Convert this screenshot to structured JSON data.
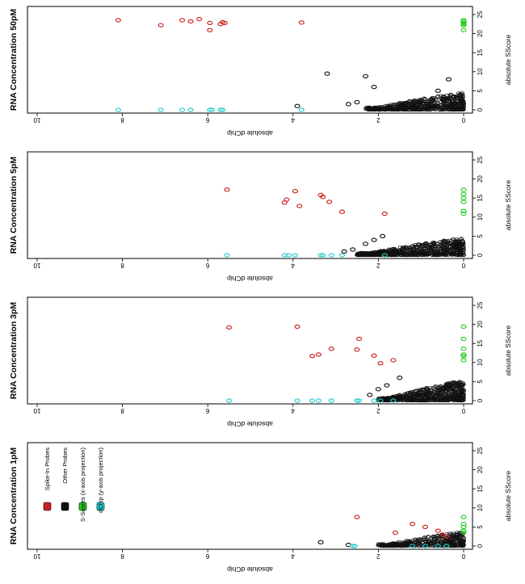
{
  "figure": {
    "x_axis_label": "absolute dChip",
    "y_axis_label": "absolute SScore",
    "x_ticks": [
      0,
      2,
      4,
      6,
      8,
      10
    ],
    "y_ticks": [
      0,
      5,
      10,
      15,
      20,
      25
    ],
    "xlim": [
      10,
      0
    ],
    "ylim": [
      0,
      25
    ],
    "orientation_note_rotated_text": "axis text rendered upside-down",
    "colors": {
      "spike_in": "#cc1f1f",
      "other": "#111111",
      "x_projection": "#22cc22",
      "y_projection": "#22cccc"
    }
  },
  "legend": {
    "items": [
      {
        "label": "Spike-In Probes",
        "color": "#cc1f1f"
      },
      {
        "label": "Other Probes",
        "color": "#111111"
      },
      {
        "label": "S-Scores (x-axis projection)",
        "color": "#22cc22"
      },
      {
        "label": "dChip (y-axis projection)",
        "color": "#22cccc"
      }
    ]
  },
  "chart_data": [
    {
      "type": "scatter",
      "title": "RNA Concentration 50pM",
      "xlabel": "absolute dChip",
      "ylabel": "absolute SScore",
      "xlim": [
        10,
        0
      ],
      "ylim": [
        0,
        25
      ],
      "series": [
        {
          "name": "Spike-In Probes",
          "x": [
            8.1,
            7.1,
            6.6,
            6.4,
            6.2,
            5.95,
            5.95,
            5.7,
            5.65,
            5.6,
            3.8
          ],
          "y": [
            23.5,
            22.2,
            23.5,
            23.2,
            23.8,
            22.8,
            20.9,
            22.5,
            23.0,
            22.8,
            22.9
          ]
        },
        {
          "name": "Other Probes",
          "x": [
            3.2,
            2.3,
            2.1,
            0.35,
            3.9,
            0.6,
            2.7,
            2.5
          ],
          "y": [
            9.5,
            8.8,
            6.0,
            8.0,
            1.0,
            5.0,
            1.5,
            2.0
          ]
        },
        {
          "name": "S-Scores (x-axis projection)",
          "x": [
            0,
            0,
            0,
            0,
            0,
            0
          ],
          "y": [
            23.5,
            23.2,
            22.8,
            22.5,
            22.2,
            20.9
          ]
        },
        {
          "name": "dChip (y-axis projection)",
          "x": [
            8.1,
            7.1,
            6.6,
            6.4,
            5.95,
            5.9,
            5.7,
            5.65,
            3.8
          ],
          "y": [
            0,
            0,
            0,
            0,
            0,
            0,
            0,
            0,
            0
          ]
        }
      ]
    },
    {
      "type": "scatter",
      "title": "RNA Concentration 5pM",
      "xlabel": "absolute dChip",
      "ylabel": "absolute SScore",
      "xlim": [
        10,
        0
      ],
      "ylim": [
        0,
        25
      ],
      "series": [
        {
          "name": "Spike-In Probes",
          "x": [
            5.55,
            4.2,
            4.15,
            3.95,
            3.85,
            3.35,
            3.3,
            3.15,
            2.85,
            1.85
          ],
          "y": [
            17.2,
            13.8,
            14.6,
            16.8,
            12.9,
            15.8,
            15.3,
            14.0,
            11.4,
            10.9
          ]
        },
        {
          "name": "Other Probes",
          "x": [
            1.9,
            2.1,
            2.3,
            2.6,
            2.8
          ],
          "y": [
            5.0,
            4.0,
            3.0,
            1.5,
            1.0
          ]
        },
        {
          "name": "S-Scores (x-axis projection)",
          "x": [
            0,
            0,
            0,
            0,
            0,
            0
          ],
          "y": [
            17.2,
            16.0,
            15.0,
            14.0,
            11.6,
            10.9
          ]
        },
        {
          "name": "dChip (y-axis projection)",
          "x": [
            5.55,
            4.2,
            4.1,
            3.95,
            3.35,
            3.3,
            3.1,
            2.85,
            1.85
          ],
          "y": [
            0,
            0,
            0,
            0,
            0,
            0,
            0,
            0,
            0
          ]
        }
      ]
    },
    {
      "type": "scatter",
      "title": "RNA Concentration 3pM",
      "xlabel": "absolute dChip",
      "ylabel": "absolute SScore",
      "xlim": [
        10,
        0
      ],
      "ylim": [
        0,
        25
      ],
      "series": [
        {
          "name": "Spike-In Probes",
          "x": [
            5.5,
            3.9,
            3.55,
            3.4,
            3.1,
            2.5,
            2.45,
            2.1,
            1.95,
            1.65
          ],
          "y": [
            19.2,
            19.4,
            11.7,
            12.1,
            13.6,
            13.4,
            16.2,
            11.8,
            9.8,
            10.6
          ]
        },
        {
          "name": "Other Probes",
          "x": [
            1.5,
            1.8,
            2.0,
            2.2
          ],
          "y": [
            6.0,
            4.0,
            3.0,
            1.5
          ]
        },
        {
          "name": "S-Scores (x-axis projection)",
          "x": [
            0,
            0,
            0,
            0,
            0,
            0
          ],
          "y": [
            19.4,
            16.2,
            13.6,
            12.1,
            11.7,
            10.6
          ]
        },
        {
          "name": "dChip (y-axis projection)",
          "x": [
            5.5,
            3.9,
            3.55,
            3.4,
            3.1,
            2.5,
            2.45,
            2.1,
            1.95,
            1.65
          ],
          "y": [
            0,
            0,
            0,
            0,
            0,
            0,
            0,
            0,
            0,
            0
          ]
        }
      ]
    },
    {
      "type": "scatter",
      "title": "RNA Concentration 1pM",
      "xlabel": "absolute dChip",
      "ylabel": "absolute SScore",
      "xlim": [
        10,
        0
      ],
      "ylim": [
        0,
        25
      ],
      "series": [
        {
          "name": "Spike-In Probes",
          "x": [
            2.5,
            1.6,
            1.2,
            0.9,
            0.6,
            0.5,
            0.4
          ],
          "y": [
            7.6,
            3.5,
            5.8,
            5.0,
            4.0,
            3.0,
            2.5
          ]
        },
        {
          "name": "Other Probes",
          "x": [
            3.35,
            2.7
          ],
          "y": [
            1.0,
            0.3
          ]
        },
        {
          "name": "S-Scores (x-axis projection)",
          "x": [
            0,
            0,
            0,
            0,
            0
          ],
          "y": [
            7.6,
            5.8,
            5.0,
            4.0,
            3.5
          ]
        },
        {
          "name": "dChip (y-axis projection)",
          "x": [
            2.6,
            2.55,
            1.2,
            0.9,
            0.6,
            0.4
          ],
          "y": [
            0,
            0,
            0,
            0,
            0,
            0
          ]
        }
      ]
    }
  ]
}
